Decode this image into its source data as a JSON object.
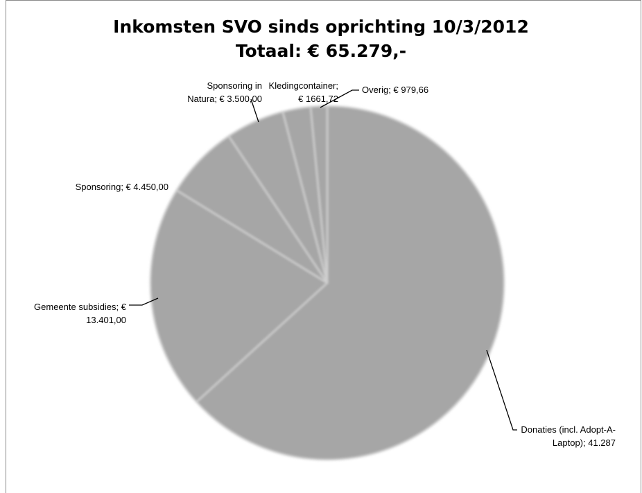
{
  "chart_data": {
    "type": "pie",
    "title": "Inkomsten SVO sinds oprichting 10/3/2012",
    "subtitle": "Totaal: € 65.279,-",
    "categories": [
      "Donaties (incl. Adopt-A-Laptop)",
      "Gemeente subsidies",
      "Sponsoring",
      "Sponsoring in Natura",
      "Kledingcontainer",
      "Overig"
    ],
    "values": [
      41287,
      13401,
      4450,
      3500,
      1661.72,
      979.66
    ],
    "data_labels": [
      [
        "Donaties (incl. Adopt-A-",
        "Laptop); 41.287"
      ],
      [
        "Gemeente subsidies; €",
        "13.401,00"
      ],
      [
        "Sponsoring;  € 4.450,00"
      ],
      [
        "Sponsoring in",
        "Natura;  € 3.500,00"
      ],
      [
        "Kledingcontainer;",
        "€ 1661,72"
      ],
      [
        "Overig;  € 979,66"
      ]
    ],
    "slice_color": "#a6a6a6",
    "separator_color": "#cfcfcf",
    "legend": "none"
  }
}
